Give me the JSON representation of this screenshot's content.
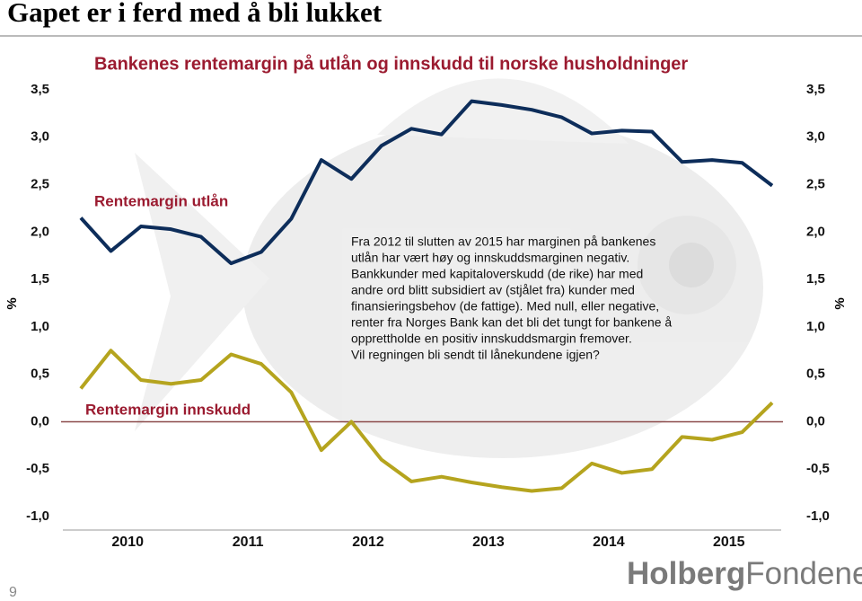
{
  "chart_data": {
    "type": "line",
    "title": "Gapet er i ferd med å bli lukket",
    "subtitle": "Bankenes rentemargin på utlån og innskudd til norske husholdninger",
    "ylabel": "%",
    "y2label": "%",
    "categories": [
      "2010",
      null,
      null,
      null,
      "2011",
      null,
      null,
      null,
      "2012",
      null,
      null,
      null,
      "2013",
      null,
      null,
      null,
      "2014",
      null,
      null,
      null,
      "2015",
      null,
      null,
      null
    ],
    "series": [
      {
        "name": "Rentemargin utlån",
        "color": "#0d2d5a",
        "values": [
          2.15,
          1.8,
          2.06,
          2.03,
          1.95,
          1.67,
          1.79,
          2.14,
          2.76,
          2.56,
          2.91,
          3.09,
          3.03,
          3.38,
          3.34,
          3.29,
          3.21,
          3.04,
          3.07,
          3.06,
          2.74,
          2.76,
          2.73,
          2.49
        ]
      },
      {
        "name": "Rentemargin innskudd",
        "color": "#b5a41e",
        "values": [
          0.35,
          0.75,
          0.44,
          0.4,
          0.44,
          0.71,
          0.61,
          0.31,
          -0.3,
          0.0,
          -0.4,
          -0.63,
          -0.58,
          -0.64,
          -0.69,
          -0.73,
          -0.7,
          -0.44,
          -0.54,
          -0.5,
          -0.16,
          -0.19,
          -0.11,
          0.2
        ]
      }
    ],
    "ylim": [
      -1.0,
      3.5
    ],
    "yticks": [
      {
        "value": -1.0,
        "label": "-1,0"
      },
      {
        "value": -0.5,
        "label": "-0,5"
      },
      {
        "value": 0.0,
        "label": "0,0"
      },
      {
        "value": 0.5,
        "label": "0,5"
      },
      {
        "value": 1.0,
        "label": "1,0"
      },
      {
        "value": 1.5,
        "label": "1,5"
      },
      {
        "value": 2.0,
        "label": "2,0"
      },
      {
        "value": 2.5,
        "label": "2,5"
      },
      {
        "value": 3.0,
        "label": "3,0"
      },
      {
        "value": 3.5,
        "label": "3,5"
      }
    ],
    "y2lim": [
      -1.0,
      3.5
    ],
    "y2ticks": [
      {
        "value": -1.0,
        "label": "-1,0"
      },
      {
        "value": -0.5,
        "label": "-0,5"
      },
      {
        "value": 0.0,
        "label": "0,0"
      },
      {
        "value": 0.5,
        "label": "0,5"
      },
      {
        "value": 1.0,
        "label": "1,0"
      },
      {
        "value": 1.5,
        "label": "1,5"
      },
      {
        "value": 2.0,
        "label": "2,0"
      },
      {
        "value": 2.5,
        "label": "2,5"
      },
      {
        "value": 3.0,
        "label": "3,0"
      },
      {
        "value": 3.5,
        "label": "3,5"
      }
    ],
    "annotation": [
      "Fra 2012 til slutten av 2015 har marginen på bankenes",
      "utlån har vært høy og innskuddsmarginen negativ.",
      "Bankkunder med kapitaloverskudd (de rike) har med",
      "andre ord blitt subsidiert av (stjålet fra) kunder med",
      "finansieringsbehov (de fattige). Med null, eller negative,",
      "renter fra Norges Bank kan det bli det tungt for bankene å",
      "opprettholde en positiv innskuddsmargin fremover.",
      "Vil  regningen bli sendt til lånekundene igjen?"
    ],
    "grid": false
  },
  "logo": [
    "Holberg",
    "Fondene"
  ],
  "page_number": "9"
}
